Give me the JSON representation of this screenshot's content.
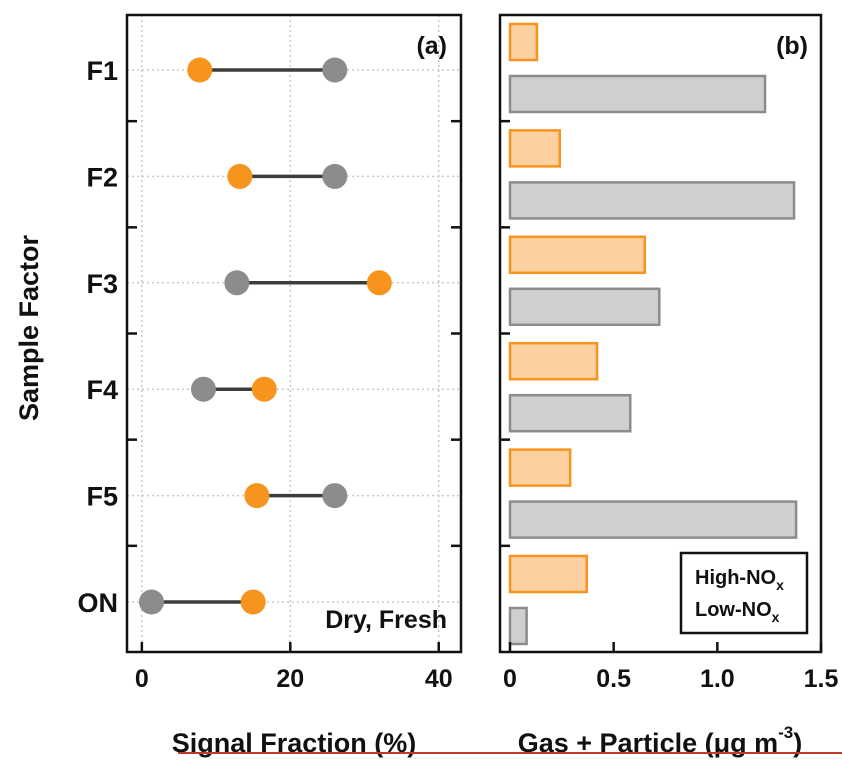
{
  "colors": {
    "high_nox": "#f7941d",
    "high_nox_fill": "#fdd0a2",
    "low_nox": "#8c8c8c",
    "low_nox_fill": "#cfcfcf",
    "line": "#3d3d3d"
  },
  "figure": {
    "ylabel": "Sample Factor"
  },
  "chart_data": [
    {
      "type": "scatter",
      "panel_label": "(a)",
      "annotation": "Dry, Fresh",
      "xlabel": "Signal Fraction (%)",
      "xlim": [
        -2,
        43
      ],
      "xticks": [
        0,
        20,
        40
      ],
      "grid": true,
      "categories": [
        "F1",
        "F2",
        "F3",
        "F4",
        "F5",
        "ON"
      ],
      "series": [
        {
          "name": "High-NOx",
          "color": "#f7941d",
          "values": [
            7.8,
            13.2,
            32.0,
            16.5,
            15.5,
            15.0
          ]
        },
        {
          "name": "Low-NOx",
          "color": "#8c8c8c",
          "values": [
            26.0,
            26.0,
            12.8,
            8.3,
            26.0,
            1.3
          ]
        }
      ]
    },
    {
      "type": "bar",
      "orientation": "horizontal",
      "panel_label": "(b)",
      "xlabel": "Gas + Particle (μg m",
      "xlabel_sup": "-3",
      "xlabel_close": ")",
      "xlim": [
        0,
        1.5
      ],
      "xticks": [
        "0",
        "0.5",
        "1.0",
        "1.5"
      ],
      "categories": [
        "F1",
        "F2",
        "F3",
        "F4",
        "F5",
        "ON"
      ],
      "legend": {
        "position": "bottom-right",
        "entries": [
          {
            "label": "High-NO",
            "sub": "x",
            "color": "#f7941d"
          },
          {
            "label": "Low-NO",
            "sub": "x",
            "color": "#8c8c8c"
          }
        ]
      },
      "series": [
        {
          "name": "High-NOx",
          "values": [
            0.13,
            0.24,
            0.65,
            0.42,
            0.29,
            0.37
          ]
        },
        {
          "name": "Low-NOx",
          "values": [
            1.23,
            1.37,
            0.72,
            0.58,
            1.38,
            0.08
          ]
        }
      ]
    }
  ]
}
